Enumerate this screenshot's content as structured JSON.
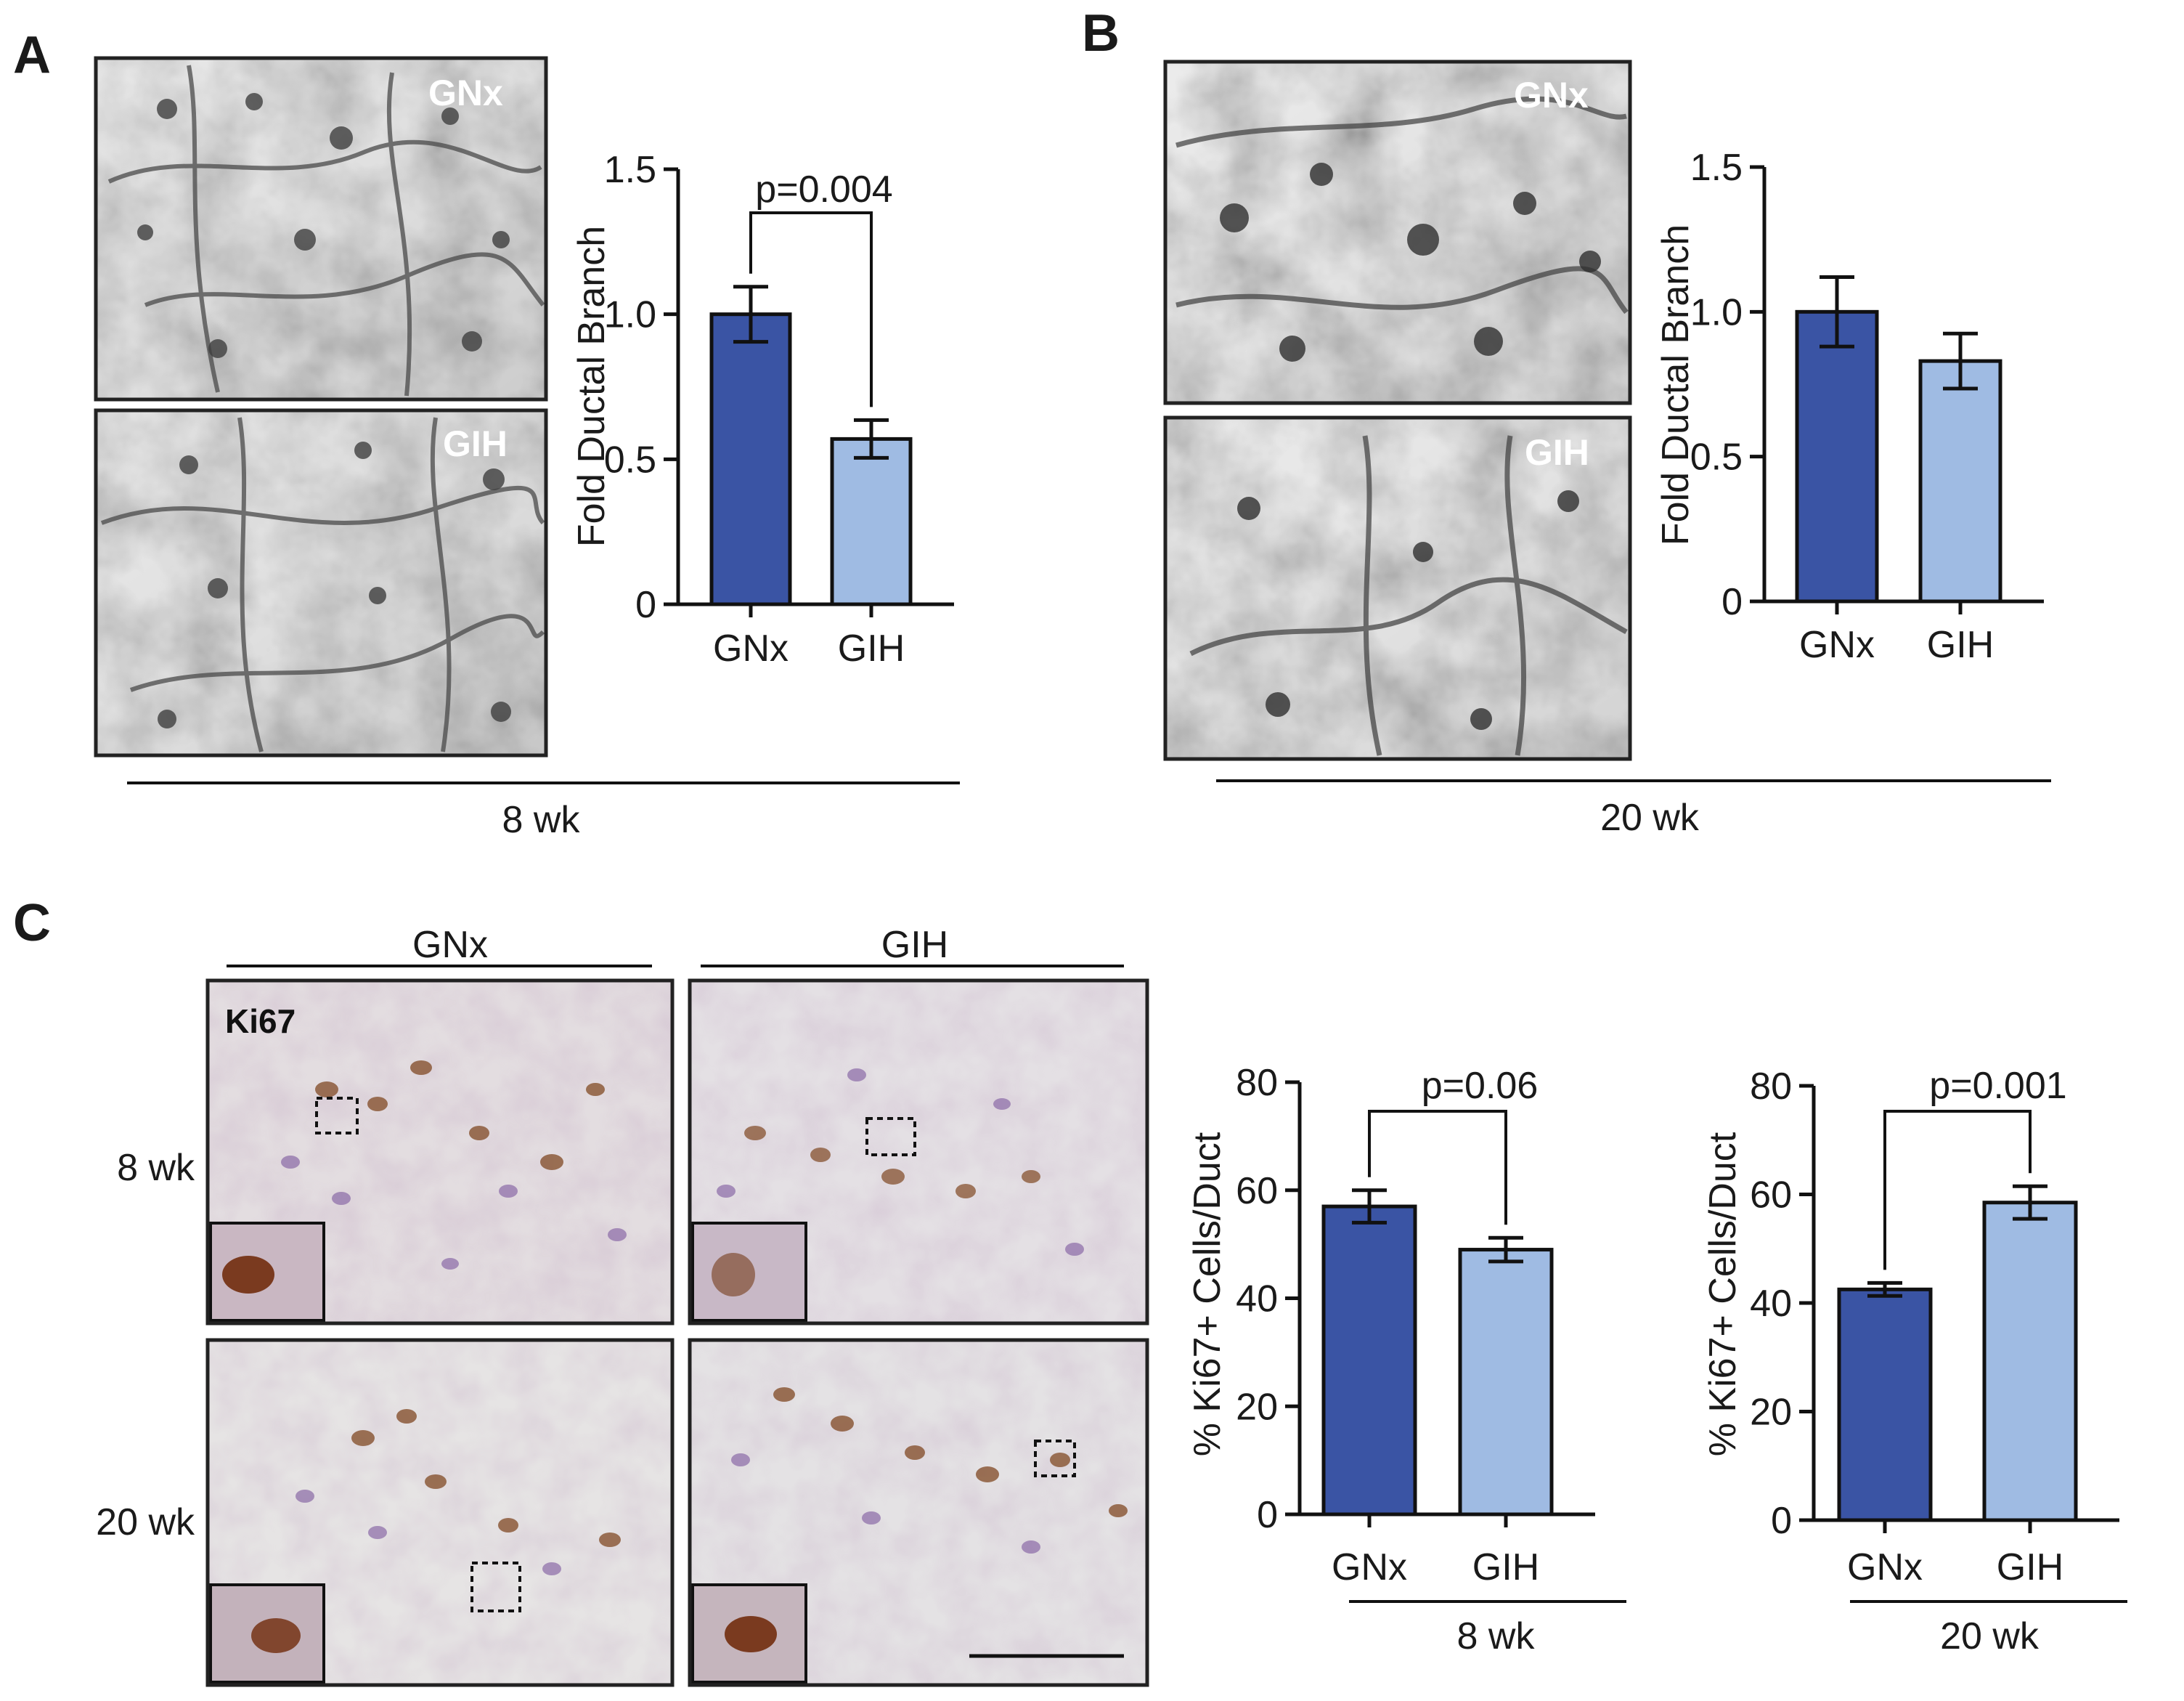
{
  "panels": {
    "A": {
      "letter": "A",
      "image_labels": [
        "GNx",
        "GIH"
      ],
      "timepoint": "8 wk"
    },
    "B": {
      "letter": "B",
      "image_labels": [
        "GNx",
        "GIH"
      ],
      "timepoint": "20 wk"
    },
    "C": {
      "letter": "C",
      "column_labels": [
        "GNx",
        "GIH"
      ],
      "row_labels": [
        "8 wk",
        "20 wk"
      ],
      "stain_label": "Ki67"
    }
  },
  "colors": {
    "gnx": "#3a54a4",
    "gih": "#9fbbe3",
    "outline": "#111111"
  },
  "chart_data": [
    {
      "id": "A-chart",
      "type": "bar",
      "categories": [
        "GNx",
        "GIH"
      ],
      "values": [
        1.0,
        0.57
      ],
      "errors": [
        0.095,
        0.065
      ],
      "ylabel": "Fold Ductal Branch",
      "ylim": [
        0,
        1.5
      ],
      "yticks": [
        "0",
        "0.5",
        "1.0",
        "1.5"
      ],
      "ytick_values": [
        0,
        0.5,
        1.0,
        1.5
      ],
      "annotation": "p=0.004",
      "group_label": ""
    },
    {
      "id": "B-chart",
      "type": "bar",
      "categories": [
        "GNx",
        "GIH"
      ],
      "values": [
        1.0,
        0.83
      ],
      "errors": [
        0.12,
        0.095
      ],
      "ylabel": "Fold Ductal Branch",
      "ylim": [
        0,
        1.5
      ],
      "yticks": [
        "0",
        "0.5",
        "1.0",
        "1.5"
      ],
      "ytick_values": [
        0,
        0.5,
        1.0,
        1.5
      ],
      "annotation": "",
      "group_label": ""
    },
    {
      "id": "C1-chart",
      "type": "bar",
      "categories": [
        "GNx",
        "GIH"
      ],
      "values": [
        57,
        49
      ],
      "errors": [
        3,
        2.2
      ],
      "ylabel": "% Ki67+ Cells/Duct",
      "ylim": [
        0,
        80
      ],
      "yticks": [
        "0",
        "20",
        "40",
        "60",
        "80"
      ],
      "ytick_values": [
        0,
        20,
        40,
        60,
        80
      ],
      "annotation": "p=0.06",
      "group_label": "8 wk"
    },
    {
      "id": "C2-chart",
      "type": "bar",
      "categories": [
        "GNx",
        "GIH"
      ],
      "values": [
        42.5,
        58.5
      ],
      "errors": [
        1.2,
        3
      ],
      "ylabel": "% Ki67+ Cells/Duct",
      "ylim": [
        0,
        80
      ],
      "yticks": [
        "0",
        "20",
        "40",
        "60",
        "80"
      ],
      "ytick_values": [
        0,
        20,
        40,
        60,
        80
      ],
      "annotation": "p=0.001",
      "group_label": "20 wk"
    }
  ]
}
